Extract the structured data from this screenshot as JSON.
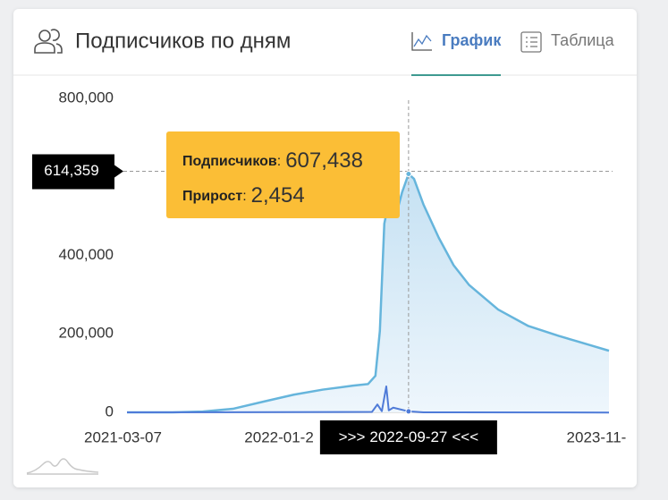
{
  "header": {
    "title": "Подписчиков по дням",
    "tabs": [
      {
        "label": "График",
        "active": true
      },
      {
        "label": "Таблица",
        "active": false
      }
    ]
  },
  "chart_data": {
    "type": "area",
    "xlim": [
      "2021-03-07",
      "2023-11-06"
    ],
    "ylim": [
      0,
      800000
    ],
    "xticks": [
      "2021-03-07",
      {
        "value": "2022-01-25",
        "label": "2022-01-2"
      },
      {
        "value": "2023-11-07",
        "label": "2023-11-"
      }
    ],
    "yticks": [
      0,
      {
        "value": 200000,
        "label": "200,000"
      },
      {
        "value": 400000,
        "label": "400,000"
      },
      {
        "value": 800000,
        "label": "800,000"
      }
    ],
    "series": [
      {
        "color": "#66b5dc",
        "fill": true,
        "x": [
          "2021-03-07",
          "2021-06-07",
          "2021-08-07",
          "2021-10-07",
          "2021-12-07",
          "2022-02-07",
          "2022-04-07",
          "2022-06-07",
          "2022-07-07",
          "2022-07-22",
          "2022-07-31",
          "2022-08-09",
          "2022-08-22",
          "2022-09-02",
          "2022-09-14",
          "2022-09-27",
          "2022-10-08",
          "2022-10-27",
          "2022-11-27",
          "2022-12-27",
          "2023-01-27",
          "2023-03-27",
          "2023-05-27",
          "2023-07-27",
          "2023-09-27",
          "2023-11-06"
        ],
        "values": [
          0,
          0,
          2000,
          9000,
          27000,
          45000,
          58000,
          68000,
          72000,
          93000,
          207000,
          481000,
          561000,
          504000,
          561000,
          607438,
          595000,
          530000,
          445000,
          375000,
          325000,
          262000,
          220000,
          195000,
          172000,
          157000
        ]
      },
      {
        "color": "#4f7bd8",
        "fill": false,
        "x": [
          "2021-03-07",
          "2022-07-15",
          "2022-07-26",
          "2022-08-04",
          "2022-08-13",
          "2022-08-18",
          "2022-08-27",
          "2022-09-27",
          "2022-10-27",
          "2023-11-06"
        ],
        "values": [
          0,
          1000,
          20000,
          3000,
          66000,
          5000,
          12000,
          2454,
          0,
          -500
        ]
      }
    ],
    "crosshair": {
      "x": "2022-09-27",
      "y": 614359,
      "y_label": "614,359",
      "x_prefix": ">>>",
      "x_suffix": "<<<"
    },
    "tooltip": {
      "separator": ":",
      "rows": [
        {
          "label": "Подписчиков",
          "value": 607438,
          "value_label": "607,438",
          "series": 0
        },
        {
          "label": "Прирост",
          "value": 2454,
          "value_label": "2,454",
          "series": 1
        }
      ]
    }
  }
}
